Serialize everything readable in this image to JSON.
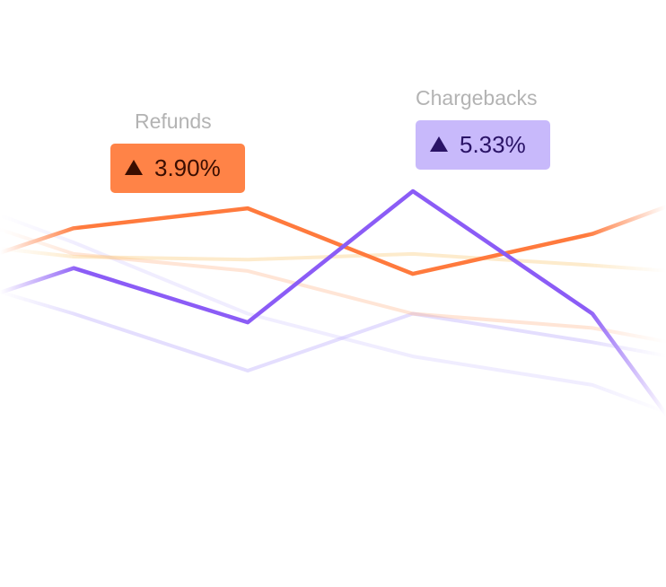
{
  "chart_data": {
    "type": "line",
    "x": [
      0,
      1,
      2,
      3,
      4,
      5
    ],
    "series": [
      {
        "values": [
          62,
          71,
          52,
          98,
          55,
          18
        ],
        "color": "#8b5cf6"
      },
      {
        "values": [
          76,
          85,
          92,
          69,
          83,
          93
        ],
        "color": "#ff7a3d"
      },
      {
        "values": [
          78,
          75,
          74,
          76,
          72,
          70
        ],
        "color": "#fbd38d"
      },
      {
        "values": [
          85,
          76,
          70,
          55,
          50,
          45
        ],
        "color": "#ffb48a"
      },
      {
        "values": [
          63,
          55,
          35,
          55,
          45,
          40
        ],
        "color": "#c4b5fd"
      },
      {
        "values": [
          90,
          80,
          55,
          40,
          30,
          20
        ],
        "color": "#ddd6fe"
      }
    ],
    "annotations": [
      {
        "label": "Refunds",
        "value": "3.90%",
        "color": "#ff8347"
      },
      {
        "label": "Chargebacks",
        "value": "5.33%",
        "color": "#c8b9fb"
      }
    ]
  },
  "metrics": {
    "refunds": {
      "label": "Refunds",
      "value": "3.90%"
    },
    "chargebacks": {
      "label": "Chargebacks",
      "value": "5.33%"
    }
  },
  "icons": {
    "trend": "triangle-up-icon"
  }
}
